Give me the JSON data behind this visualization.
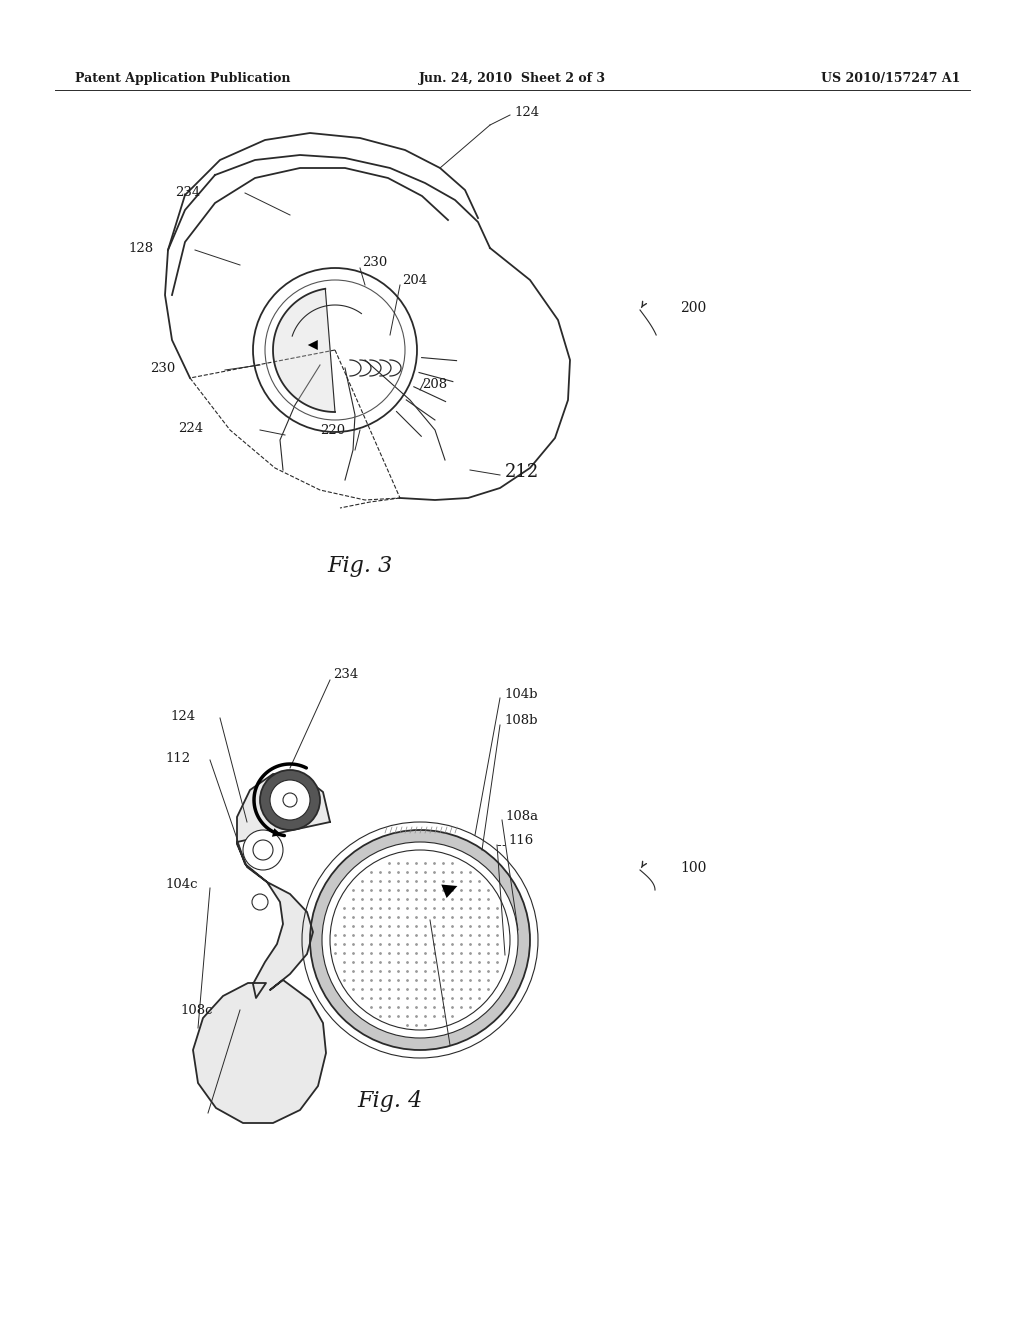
{
  "background_color": "#ffffff",
  "header_left": "Patent Application Publication",
  "header_center": "Jun. 24, 2010  Sheet 2 of 3",
  "header_right": "US 2010/157247 A1",
  "fig3_caption": "Fig. 3",
  "fig4_caption": "Fig. 4",
  "text_color": "#1a1a1a",
  "line_color": "#2a2a2a",
  "lw_thin": 0.8,
  "lw_med": 1.3,
  "lw_thick": 2.0
}
